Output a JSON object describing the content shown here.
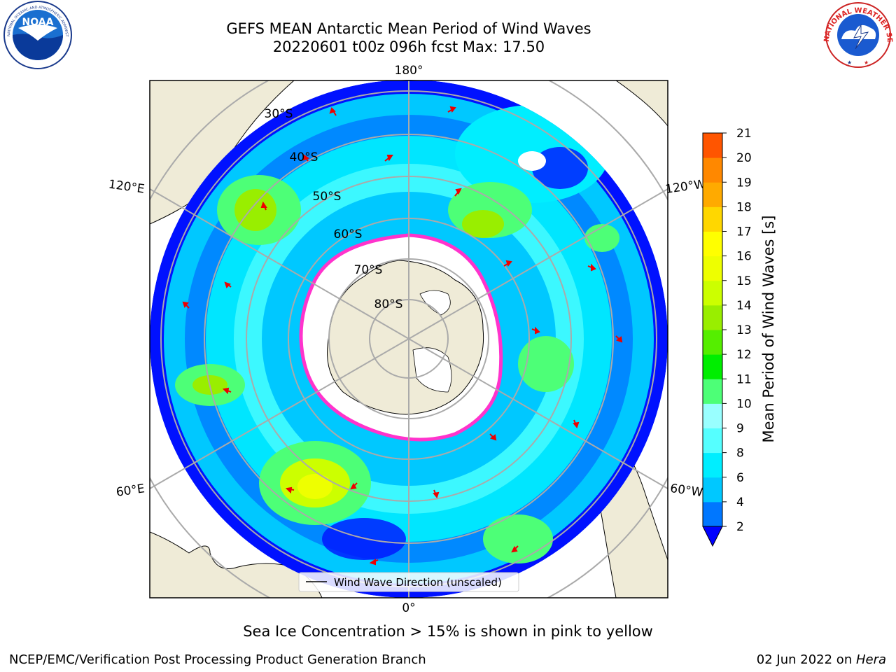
{
  "header": {
    "title_line1": "GEFS MEAN Antarctic Mean Period of Wind Waves",
    "title_line2": "20220601 t00z 096h fcst   Max: 17.50"
  },
  "logos": {
    "left": "NOAA",
    "left_ring_text": "NATIONAL OCEANIC AND ATMOSPHERIC ADMINISTRATION · U.S. DEPARTMENT OF COMMERCE",
    "right_ring_text": "NATIONAL WEATHER SERVICE"
  },
  "map": {
    "longitude_labels": [
      "180°",
      "120°E",
      "120°W",
      "60°E",
      "60°W",
      "0°"
    ],
    "latitude_labels": [
      "30°S",
      "40°S",
      "50°S",
      "60°S",
      "70°S",
      "80°S"
    ],
    "legend_label": "Wind Wave Direction (unscaled)",
    "arrow_color": "#ff0000",
    "land_color": "#efebd7",
    "ocean_blue": "#0000ff"
  },
  "colorbar": {
    "label": "Mean Period of Wind Waves [s]",
    "ticks": [
      "2",
      "4",
      "6",
      "8",
      "9",
      "10",
      "11",
      "12",
      "13",
      "14",
      "15",
      "16",
      "17",
      "18",
      "19",
      "20",
      "21"
    ],
    "colors": [
      "#0077ff",
      "#00c8ff",
      "#00eeff",
      "#55ffff",
      "#99ffff",
      "#4dff77",
      "#00ee00",
      "#55ee00",
      "#99ee00",
      "#ccff00",
      "#eeff00",
      "#ffff00",
      "#ffd700",
      "#ffaa00",
      "#ff8800",
      "#ff5500",
      "#ff2200",
      "#ff0000"
    ],
    "extend_color": "#0000ff"
  },
  "note": "Sea Ice Concentration > 15% is shown in pink to yellow",
  "footer": {
    "left": "NCEP/EMC/Verification Post Processing Product Generation Branch",
    "date": "02 Jun 2022 on ",
    "host": "Hera"
  }
}
